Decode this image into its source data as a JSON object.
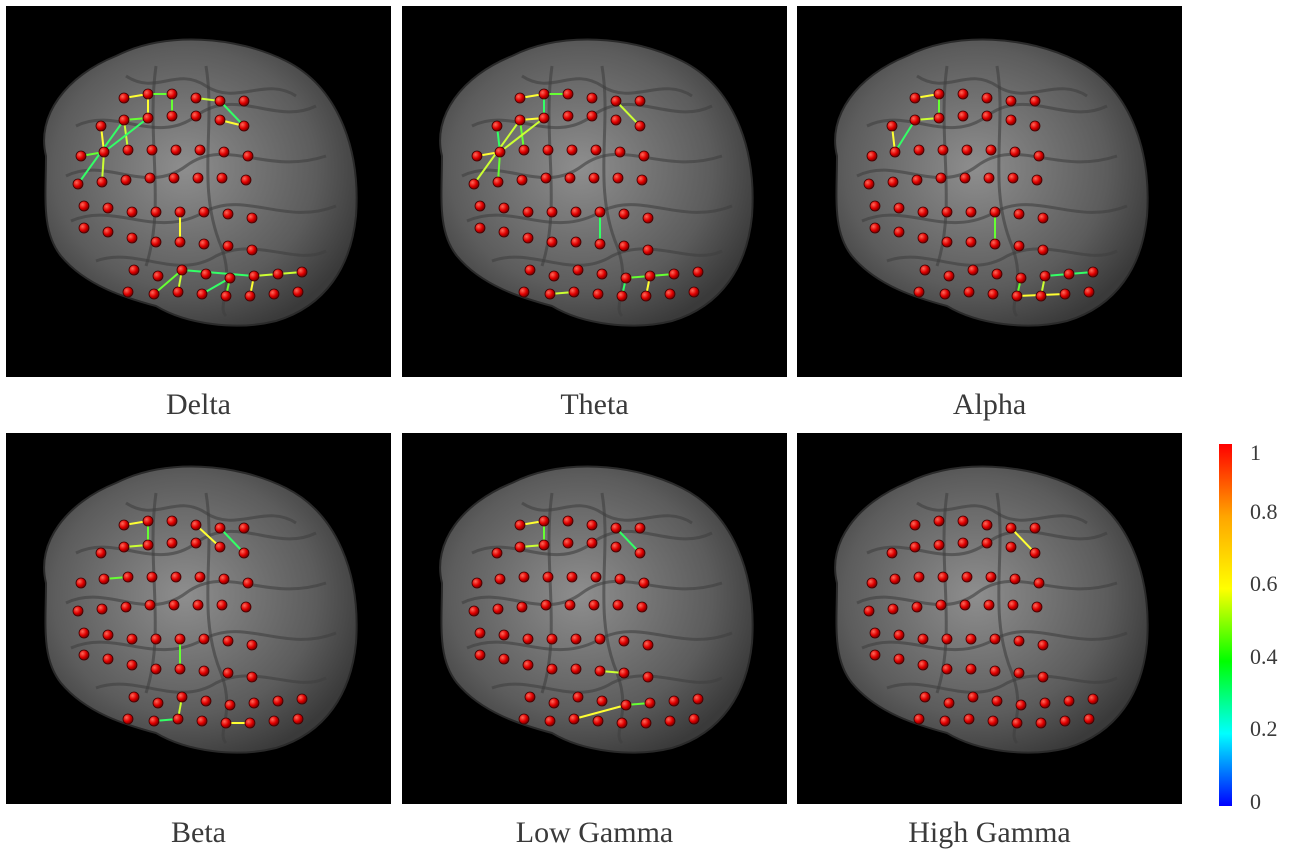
{
  "panels": [
    {
      "id": "delta",
      "label": "Delta"
    },
    {
      "id": "theta",
      "label": "Theta"
    },
    {
      "id": "alpha",
      "label": "Alpha"
    },
    {
      "id": "beta",
      "label": "Beta"
    },
    {
      "id": "low-gamma",
      "label": "Low Gamma"
    },
    {
      "id": "high-gamma",
      "label": "High Gamma"
    }
  ],
  "colorbar": {
    "ticks": [
      "1",
      "0.8",
      "0.6",
      "0.4",
      "0.2",
      "0"
    ],
    "colors": [
      "#ff0000",
      "#ffa500",
      "#ffff00",
      "#00ff00",
      "#00ffff",
      "#0000ff"
    ]
  }
}
